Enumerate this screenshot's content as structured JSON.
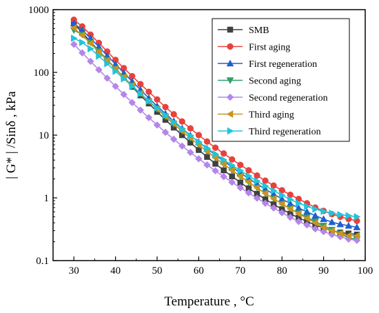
{
  "chart_data": {
    "type": "line",
    "xlabel": "Temperature , °C",
    "ylabel": "| G* | /Sinδ , kPa",
    "x_scale": "linear",
    "y_scale": "log",
    "xlim": [
      25,
      100
    ],
    "ylim": [
      0.1,
      1000
    ],
    "x_ticks": [
      30,
      40,
      50,
      60,
      70,
      80,
      90,
      100
    ],
    "x_tick_labels": [
      "30",
      "40",
      "50",
      "60",
      "70",
      "80",
      "90",
      "100"
    ],
    "y_ticks": [
      0.1,
      1,
      10,
      100,
      1000
    ],
    "y_tick_labels": [
      "0.1",
      "1",
      "10",
      "100",
      "1000"
    ],
    "grid": false,
    "legend_position": "top-right",
    "x": [
      30,
      32,
      34,
      36,
      38,
      40,
      42,
      44,
      46,
      48,
      50,
      52,
      54,
      56,
      58,
      60,
      62,
      64,
      66,
      68,
      70,
      72,
      74,
      76,
      78,
      80,
      82,
      84,
      86,
      88,
      90,
      92,
      94,
      96,
      98
    ],
    "series": [
      {
        "name": "SMB",
        "color": "#404040",
        "marker": "square",
        "values": [
          600,
          430,
          310,
          220,
          160,
          115,
          82,
          59,
          43,
          32,
          23.5,
          17.5,
          13.2,
          10,
          7.6,
          5.8,
          4.5,
          3.5,
          2.75,
          2.2,
          1.75,
          1.42,
          1.16,
          0.95,
          0.79,
          0.66,
          0.56,
          0.48,
          0.42,
          0.37,
          0.33,
          0.3,
          0.28,
          0.27,
          0.26
        ]
      },
      {
        "name": "First aging",
        "color": "#e8413c",
        "marker": "circle",
        "values": [
          690,
          540,
          400,
          295,
          215,
          158,
          117,
          87,
          65,
          49,
          37,
          28,
          21.5,
          16.5,
          12.8,
          10,
          7.9,
          6.3,
          5.1,
          4.1,
          3.35,
          2.75,
          2.27,
          1.88,
          1.57,
          1.32,
          1.12,
          0.96,
          0.82,
          0.7,
          0.62,
          0.55,
          0.5,
          0.46,
          0.43
        ]
      },
      {
        "name": "First regeneration",
        "color": "#1f5fd0",
        "marker": "triangle-up",
        "values": [
          610,
          470,
          350,
          255,
          185,
          135,
          98,
          72,
          53,
          39,
          29,
          22,
          16.7,
          12.8,
          9.9,
          7.7,
          6.1,
          4.8,
          3.85,
          3.1,
          2.5,
          2.03,
          1.67,
          1.38,
          1.15,
          0.96,
          0.81,
          0.69,
          0.6,
          0.52,
          0.46,
          0.41,
          0.38,
          0.36,
          0.34
        ]
      },
      {
        "name": "Second aging",
        "color": "#2e9e6e",
        "marker": "triangle-down",
        "values": [
          470,
          400,
          300,
          218,
          158,
          115,
          84,
          62,
          46,
          34.5,
          26,
          19.7,
          15,
          11.6,
          9,
          7,
          5.5,
          4.35,
          3.45,
          2.75,
          2.2,
          1.78,
          1.45,
          1.18,
          0.97,
          0.8,
          0.67,
          0.57,
          0.49,
          0.42,
          0.36,
          0.31,
          0.27,
          0.23,
          0.22
        ]
      },
      {
        "name": "Second regeneration",
        "color": "#b386e8",
        "marker": "diamond",
        "values": [
          280,
          205,
          150,
          110,
          81,
          60,
          44.5,
          33,
          25,
          19,
          14.5,
          11.1,
          8.6,
          6.7,
          5.3,
          4.2,
          3.35,
          2.7,
          2.18,
          1.77,
          1.45,
          1.2,
          0.99,
          0.82,
          0.69,
          0.58,
          0.49,
          0.42,
          0.37,
          0.32,
          0.29,
          0.26,
          0.24,
          0.22,
          0.21
        ]
      },
      {
        "name": "Third aging",
        "color": "#c8951e",
        "marker": "triangle-left",
        "values": [
          510,
          390,
          290,
          212,
          155,
          114,
          84,
          62,
          46,
          34.5,
          26,
          19.8,
          15.1,
          11.6,
          9,
          7,
          5.5,
          4.35,
          3.45,
          2.75,
          2.2,
          1.78,
          1.45,
          1.18,
          0.97,
          0.8,
          0.67,
          0.56,
          0.47,
          0.4,
          0.34,
          0.3,
          0.27,
          0.25,
          0.25
        ]
      },
      {
        "name": "Third regeneration",
        "color": "#23c4d8",
        "marker": "triangle-right",
        "values": [
          350,
          300,
          238,
          182,
          138,
          104,
          79,
          60,
          46,
          35,
          27,
          20.8,
          16.1,
          12.5,
          9.8,
          7.8,
          6.2,
          5,
          4.05,
          3.3,
          2.72,
          2.24,
          1.86,
          1.55,
          1.3,
          1.1,
          0.94,
          0.82,
          0.73,
          0.66,
          0.61,
          0.57,
          0.54,
          0.52,
          0.5
        ]
      }
    ]
  }
}
